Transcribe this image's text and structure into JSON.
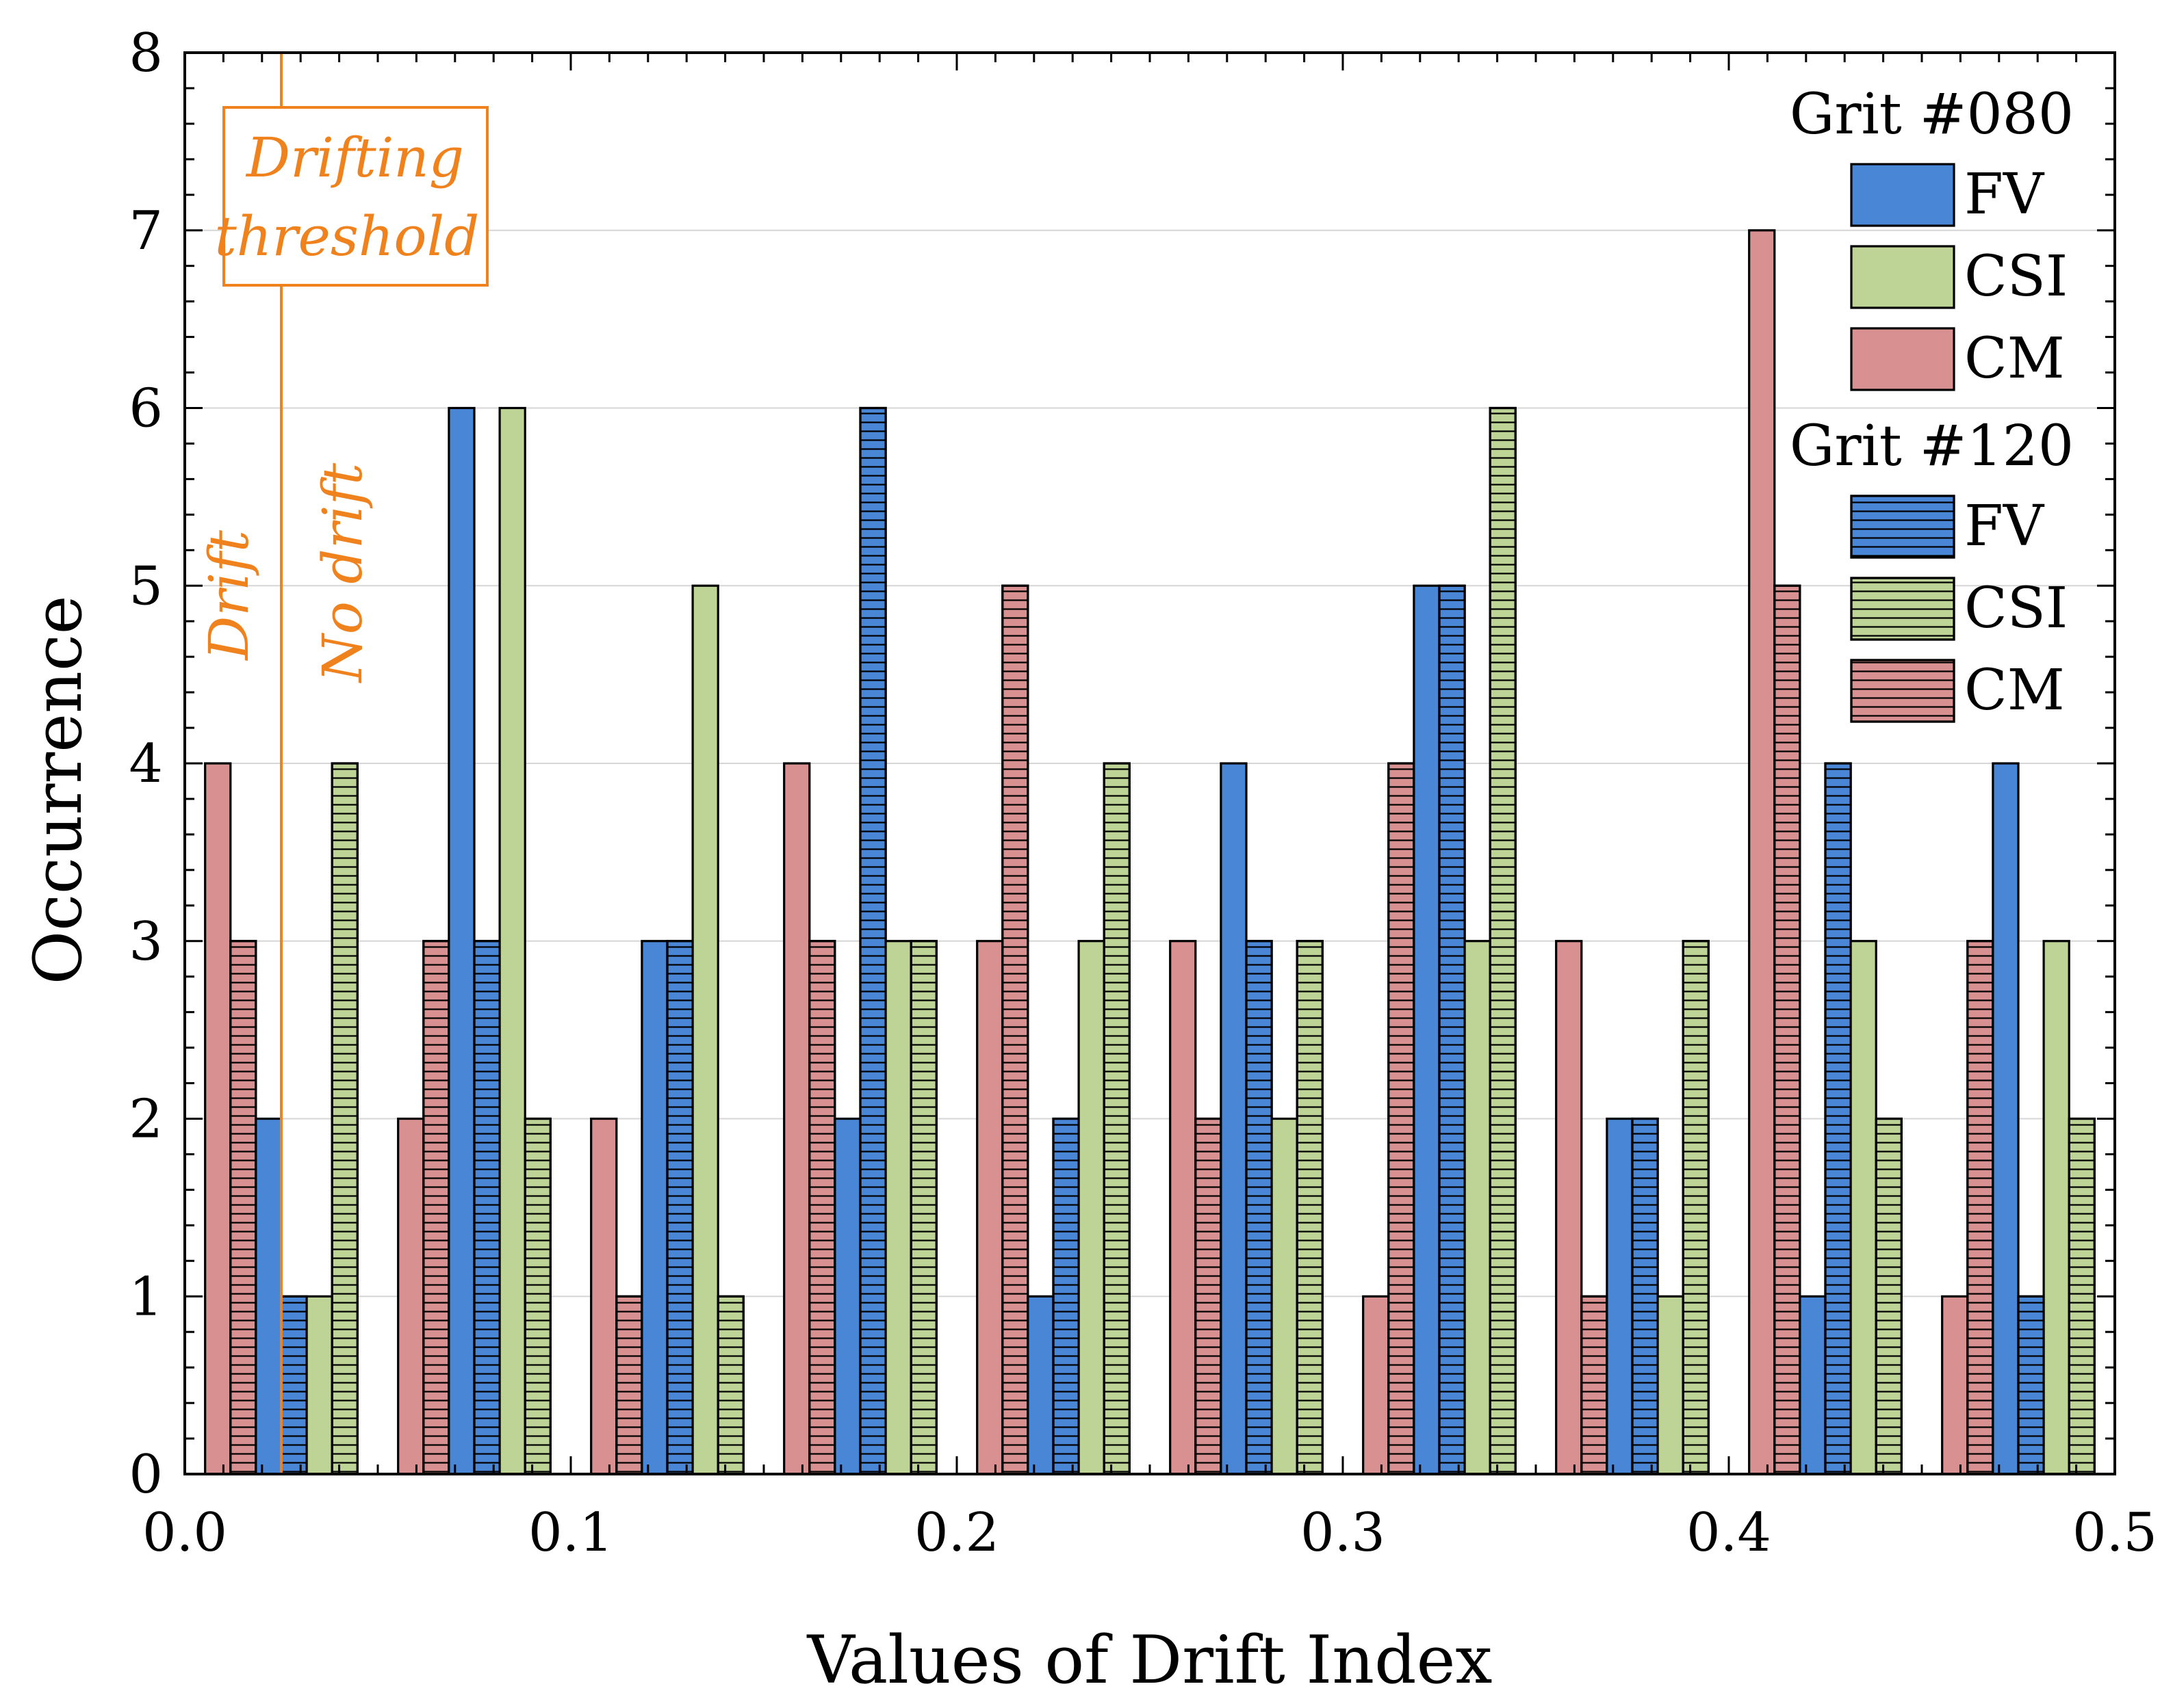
{
  "chart_data": {
    "type": "bar",
    "xlabel": "Values of Drift Index",
    "ylabel": "Occurrence",
    "xlim": [
      0.0,
      0.5
    ],
    "ylim": [
      0,
      8
    ],
    "xticks": [
      "0.0",
      "0.1",
      "0.2",
      "0.3",
      "0.4",
      "0.5"
    ],
    "yticks": [
      "0",
      "1",
      "2",
      "3",
      "4",
      "5",
      "6",
      "7",
      "8"
    ],
    "grid": "horizontal",
    "bin_centers": [
      0.025,
      0.075,
      0.125,
      0.175,
      0.225,
      0.275,
      0.325,
      0.375,
      0.425,
      0.475
    ],
    "series": [
      {
        "name": "CM",
        "group": "Grit #080",
        "color": "#d89090",
        "hatched": false,
        "values": [
          4,
          2,
          2,
          4,
          3,
          3,
          1,
          3,
          7,
          1
        ]
      },
      {
        "name": "CM",
        "group": "Grit #120",
        "color": "#d89090",
        "hatched": true,
        "values": [
          3,
          3,
          1,
          3,
          5,
          2,
          4,
          1,
          5,
          3
        ]
      },
      {
        "name": "FV",
        "group": "Grit #080",
        "color": "#4a86d6",
        "hatched": false,
        "values": [
          2,
          6,
          3,
          2,
          1,
          4,
          5,
          2,
          1,
          4
        ]
      },
      {
        "name": "FV",
        "group": "Grit #120",
        "color": "#4a86d6",
        "hatched": true,
        "values": [
          1,
          3,
          3,
          6,
          2,
          3,
          5,
          2,
          4,
          1
        ]
      },
      {
        "name": "CSI",
        "group": "Grit #080",
        "color": "#bdd496",
        "hatched": false,
        "values": [
          1,
          6,
          5,
          3,
          3,
          2,
          3,
          1,
          3,
          3
        ]
      },
      {
        "name": "CSI",
        "group": "Grit #120",
        "color": "#bdd496",
        "hatched": true,
        "values": [
          4,
          2,
          1,
          3,
          4,
          3,
          6,
          3,
          2,
          2
        ]
      }
    ],
    "legend": {
      "position": "top-right",
      "groups": [
        {
          "title": "Grit #080",
          "items": [
            "FV",
            "CSI",
            "CM"
          ]
        },
        {
          "title": "Grit #120",
          "items": [
            "FV",
            "CSI",
            "CM"
          ]
        }
      ]
    },
    "threshold": {
      "x": 0.025,
      "color": "#f0821e",
      "box_text": [
        "Drifting",
        "threshold"
      ],
      "left_label": "Drift",
      "right_label": "No drift"
    }
  }
}
